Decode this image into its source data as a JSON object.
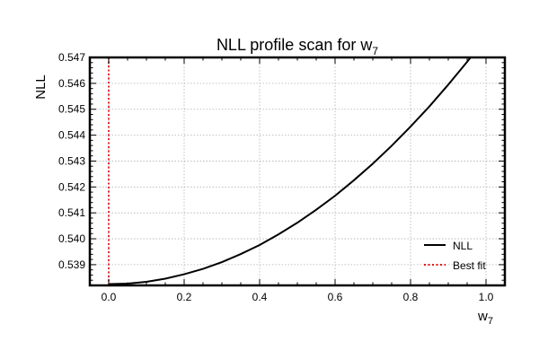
{
  "chart_data": {
    "type": "line",
    "title": "NLL profile scan for w",
    "title_subscript": "7",
    "xlabel": "w",
    "xlabel_subscript": "7",
    "ylabel": "NLL",
    "xlim": [
      -0.05,
      1.05
    ],
    "ylim": [
      0.5382,
      0.547
    ],
    "xticks": [
      0.0,
      0.2,
      0.4,
      0.6,
      0.8,
      1.0
    ],
    "xtick_labels": [
      "0.0",
      "0.2",
      "0.4",
      "0.6",
      "0.8",
      "1.0"
    ],
    "yticks": [
      0.539,
      0.54,
      0.541,
      0.542,
      0.543,
      0.544,
      0.545,
      0.546,
      0.547
    ],
    "ytick_labels": [
      "0.539",
      "0.540",
      "0.541",
      "0.542",
      "0.543",
      "0.544",
      "0.545",
      "0.546",
      "0.547"
    ],
    "grid": true,
    "legend_position": "lower-right",
    "series": [
      {
        "name": "NLL",
        "style": "solid",
        "color": "#000000",
        "x": [
          0.0,
          0.05,
          0.1,
          0.15,
          0.2,
          0.25,
          0.3,
          0.35,
          0.4,
          0.45,
          0.5,
          0.55,
          0.6,
          0.65,
          0.7,
          0.75,
          0.8,
          0.85,
          0.9,
          0.95,
          1.0
        ],
        "y": [
          0.53825,
          0.53827,
          0.53834,
          0.53846,
          0.53863,
          0.53884,
          0.5391,
          0.53941,
          0.53976,
          0.54017,
          0.54062,
          0.54112,
          0.54166,
          0.54226,
          0.5429,
          0.54359,
          0.54433,
          0.54511,
          0.54595,
          0.54683,
          0.54775
        ]
      }
    ],
    "vlines": [
      {
        "name": "Best fit",
        "style": "dotted",
        "color": "#e41a1c",
        "x": 0.0
      }
    ]
  }
}
